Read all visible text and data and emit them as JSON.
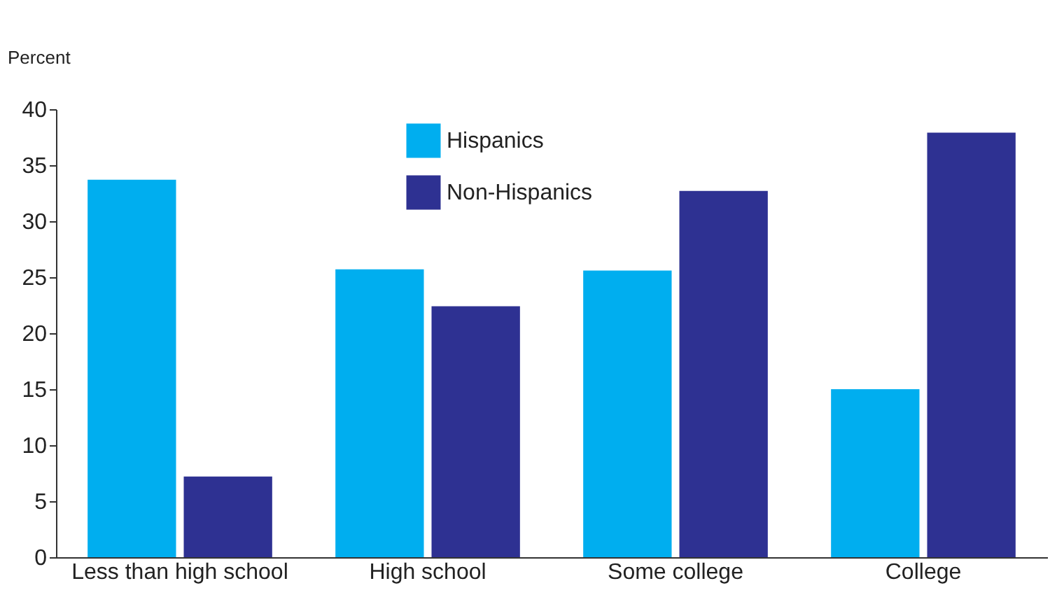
{
  "chart_data": {
    "type": "bar",
    "ylabel": "Percent",
    "categories": [
      "Less than high school",
      "High school",
      "Some college",
      "College"
    ],
    "series": [
      {
        "name": "Hispanics",
        "color": "#00aeef",
        "values": [
          33.7,
          25.7,
          25.6,
          15.0
        ]
      },
      {
        "name": "Non-Hispanics",
        "color": "#2e3192",
        "values": [
          7.2,
          22.4,
          32.7,
          37.9
        ]
      }
    ],
    "ylim": [
      0,
      40
    ],
    "yticks": [
      0,
      5,
      10,
      15,
      20,
      25,
      30,
      35,
      40
    ],
    "grid": false,
    "legend": "top left"
  }
}
